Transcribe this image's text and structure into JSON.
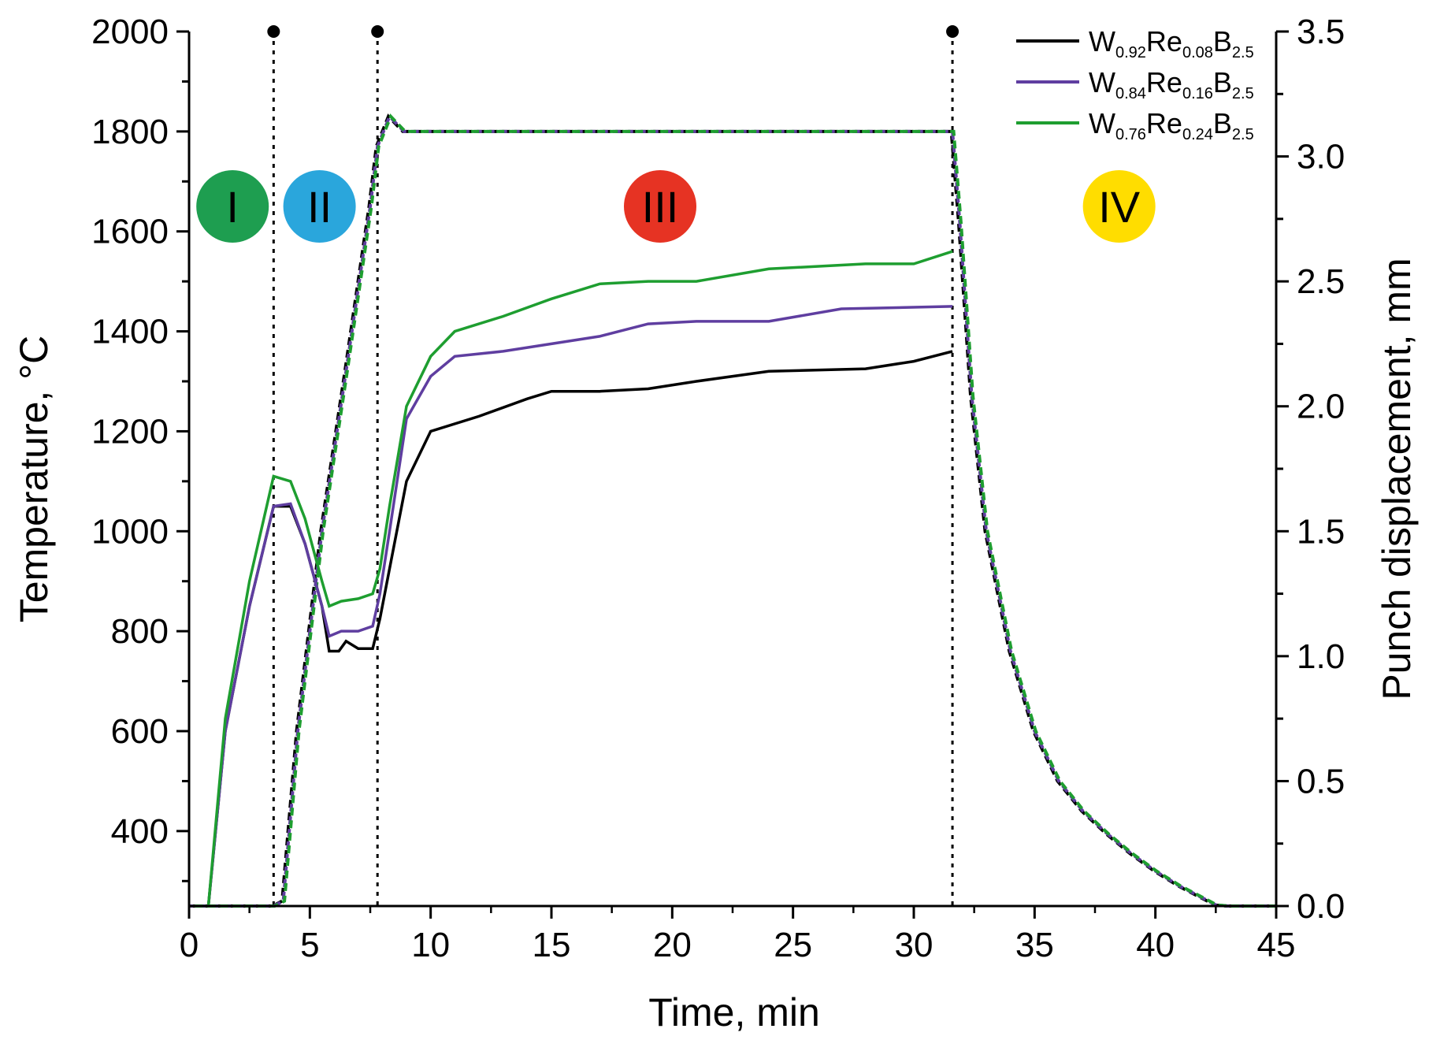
{
  "chart_data": {
    "type": "line",
    "xlabel": "Time, min",
    "ylabel_left": "Temperature, °C",
    "ylabel_right": "Punch displacement, mm",
    "xlim": [
      0,
      45
    ],
    "ylim_left": [
      250,
      2000
    ],
    "ylim_right": [
      0,
      3.5
    ],
    "x_ticks": [
      "0",
      "5",
      "10",
      "15",
      "20",
      "25",
      "30",
      "35",
      "40",
      "45"
    ],
    "y_left_ticks": [
      "400",
      "600",
      "800",
      "1000",
      "1200",
      "1400",
      "1600",
      "1800",
      "2000"
    ],
    "y_right_ticks": [
      "0.0",
      "0.5",
      "1.0",
      "1.5",
      "2.0",
      "2.5",
      "3.0",
      "3.5"
    ],
    "stage_boundaries": [
      3.5,
      7.8,
      31.6
    ],
    "stages": [
      {
        "label": "I",
        "x": 1.8,
        "y": 1650,
        "color": "#1e9e50"
      },
      {
        "label": "II",
        "x": 5.4,
        "y": 1650,
        "color": "#2aa6dc"
      },
      {
        "label": "III",
        "x": 19.5,
        "y": 1650,
        "color": "#e63323"
      },
      {
        "label": "IV",
        "x": 38.5,
        "y": 1650,
        "color": "#ffdd00"
      }
    ],
    "temperature": {
      "name": "Temperature",
      "style": "dashed",
      "points": [
        [
          0,
          250
        ],
        [
          3.5,
          250
        ],
        [
          3.9,
          260
        ],
        [
          4.5,
          600
        ],
        [
          5.5,
          1000
        ],
        [
          6.5,
          1320
        ],
        [
          7.5,
          1650
        ],
        [
          7.8,
          1770
        ],
        [
          8.3,
          1830
        ],
        [
          8.9,
          1800
        ],
        [
          31.6,
          1800
        ],
        [
          31.9,
          1620
        ],
        [
          32.4,
          1270
        ],
        [
          33.0,
          1000
        ],
        [
          34.0,
          760
        ],
        [
          35.0,
          600
        ],
        [
          36.0,
          500
        ],
        [
          37.0,
          440
        ],
        [
          38.0,
          395
        ],
        [
          39.0,
          355
        ],
        [
          40.0,
          320
        ],
        [
          41.0,
          290
        ],
        [
          42.0,
          265
        ],
        [
          42.5,
          252
        ],
        [
          43.0,
          250
        ],
        [
          45,
          250
        ]
      ]
    },
    "series": [
      {
        "name": "W0.92Re0.08B2.5",
        "legend": {
          "el1": "W",
          "sub1": "0.92",
          "el2": "Re",
          "sub2": "0.08",
          "el3": "B",
          "sub3": "2.5"
        },
        "color": "#000000",
        "points": [
          [
            0.8,
            0
          ],
          [
            1.5,
            0.7
          ],
          [
            2.5,
            1.2
          ],
          [
            3.5,
            1.6
          ],
          [
            4.2,
            1.6
          ],
          [
            4.8,
            1.45
          ],
          [
            5.5,
            1.2
          ],
          [
            5.8,
            1.02
          ],
          [
            6.2,
            1.02
          ],
          [
            6.5,
            1.06
          ],
          [
            7.0,
            1.03
          ],
          [
            7.6,
            1.03
          ],
          [
            7.9,
            1.15
          ],
          [
            8.3,
            1.35
          ],
          [
            9.0,
            1.7
          ],
          [
            10.0,
            1.9
          ],
          [
            12.0,
            1.96
          ],
          [
            14.0,
            2.03
          ],
          [
            15.0,
            2.06
          ],
          [
            17.0,
            2.06
          ],
          [
            19.0,
            2.07
          ],
          [
            21.0,
            2.1
          ],
          [
            24.0,
            2.14
          ],
          [
            28.0,
            2.15
          ],
          [
            30.0,
            2.18
          ],
          [
            31.6,
            2.22
          ]
        ]
      },
      {
        "name": "W0.84Re0.16B2.5",
        "legend": {
          "el1": "W",
          "sub1": "0.84",
          "el2": "Re",
          "sub2": "0.16",
          "el3": "B",
          "sub3": "2.5"
        },
        "color": "#5f3ea0",
        "points": [
          [
            0.8,
            0
          ],
          [
            1.5,
            0.7
          ],
          [
            2.5,
            1.2
          ],
          [
            3.5,
            1.6
          ],
          [
            4.2,
            1.61
          ],
          [
            4.8,
            1.45
          ],
          [
            5.5,
            1.2
          ],
          [
            5.8,
            1.08
          ],
          [
            6.3,
            1.1
          ],
          [
            7.0,
            1.1
          ],
          [
            7.6,
            1.12
          ],
          [
            7.9,
            1.25
          ],
          [
            8.3,
            1.5
          ],
          [
            9.0,
            1.95
          ],
          [
            10.0,
            2.12
          ],
          [
            11.0,
            2.2
          ],
          [
            13.0,
            2.22
          ],
          [
            15.0,
            2.25
          ],
          [
            17.0,
            2.28
          ],
          [
            19.0,
            2.33
          ],
          [
            21.0,
            2.34
          ],
          [
            24.0,
            2.34
          ],
          [
            27.0,
            2.39
          ],
          [
            31.6,
            2.4
          ]
        ]
      },
      {
        "name": "W0.76Re0.24B2.5",
        "legend": {
          "el1": "W",
          "sub1": "0.76",
          "el2": "Re",
          "sub2": "0.24",
          "el3": "B",
          "sub3": "2.5"
        },
        "color": "#1e9e30",
        "points": [
          [
            0.8,
            0
          ],
          [
            1.5,
            0.75
          ],
          [
            2.5,
            1.3
          ],
          [
            3.5,
            1.72
          ],
          [
            4.2,
            1.7
          ],
          [
            4.8,
            1.55
          ],
          [
            5.5,
            1.3
          ],
          [
            5.8,
            1.2
          ],
          [
            6.3,
            1.22
          ],
          [
            7.0,
            1.23
          ],
          [
            7.6,
            1.25
          ],
          [
            7.9,
            1.35
          ],
          [
            8.3,
            1.6
          ],
          [
            9.0,
            2.0
          ],
          [
            10.0,
            2.2
          ],
          [
            11.0,
            2.3
          ],
          [
            13.0,
            2.36
          ],
          [
            15.0,
            2.43
          ],
          [
            17.0,
            2.49
          ],
          [
            19.0,
            2.5
          ],
          [
            21.0,
            2.5
          ],
          [
            24.0,
            2.55
          ],
          [
            28.0,
            2.57
          ],
          [
            30.0,
            2.57
          ],
          [
            31.6,
            2.62
          ]
        ]
      }
    ]
  }
}
